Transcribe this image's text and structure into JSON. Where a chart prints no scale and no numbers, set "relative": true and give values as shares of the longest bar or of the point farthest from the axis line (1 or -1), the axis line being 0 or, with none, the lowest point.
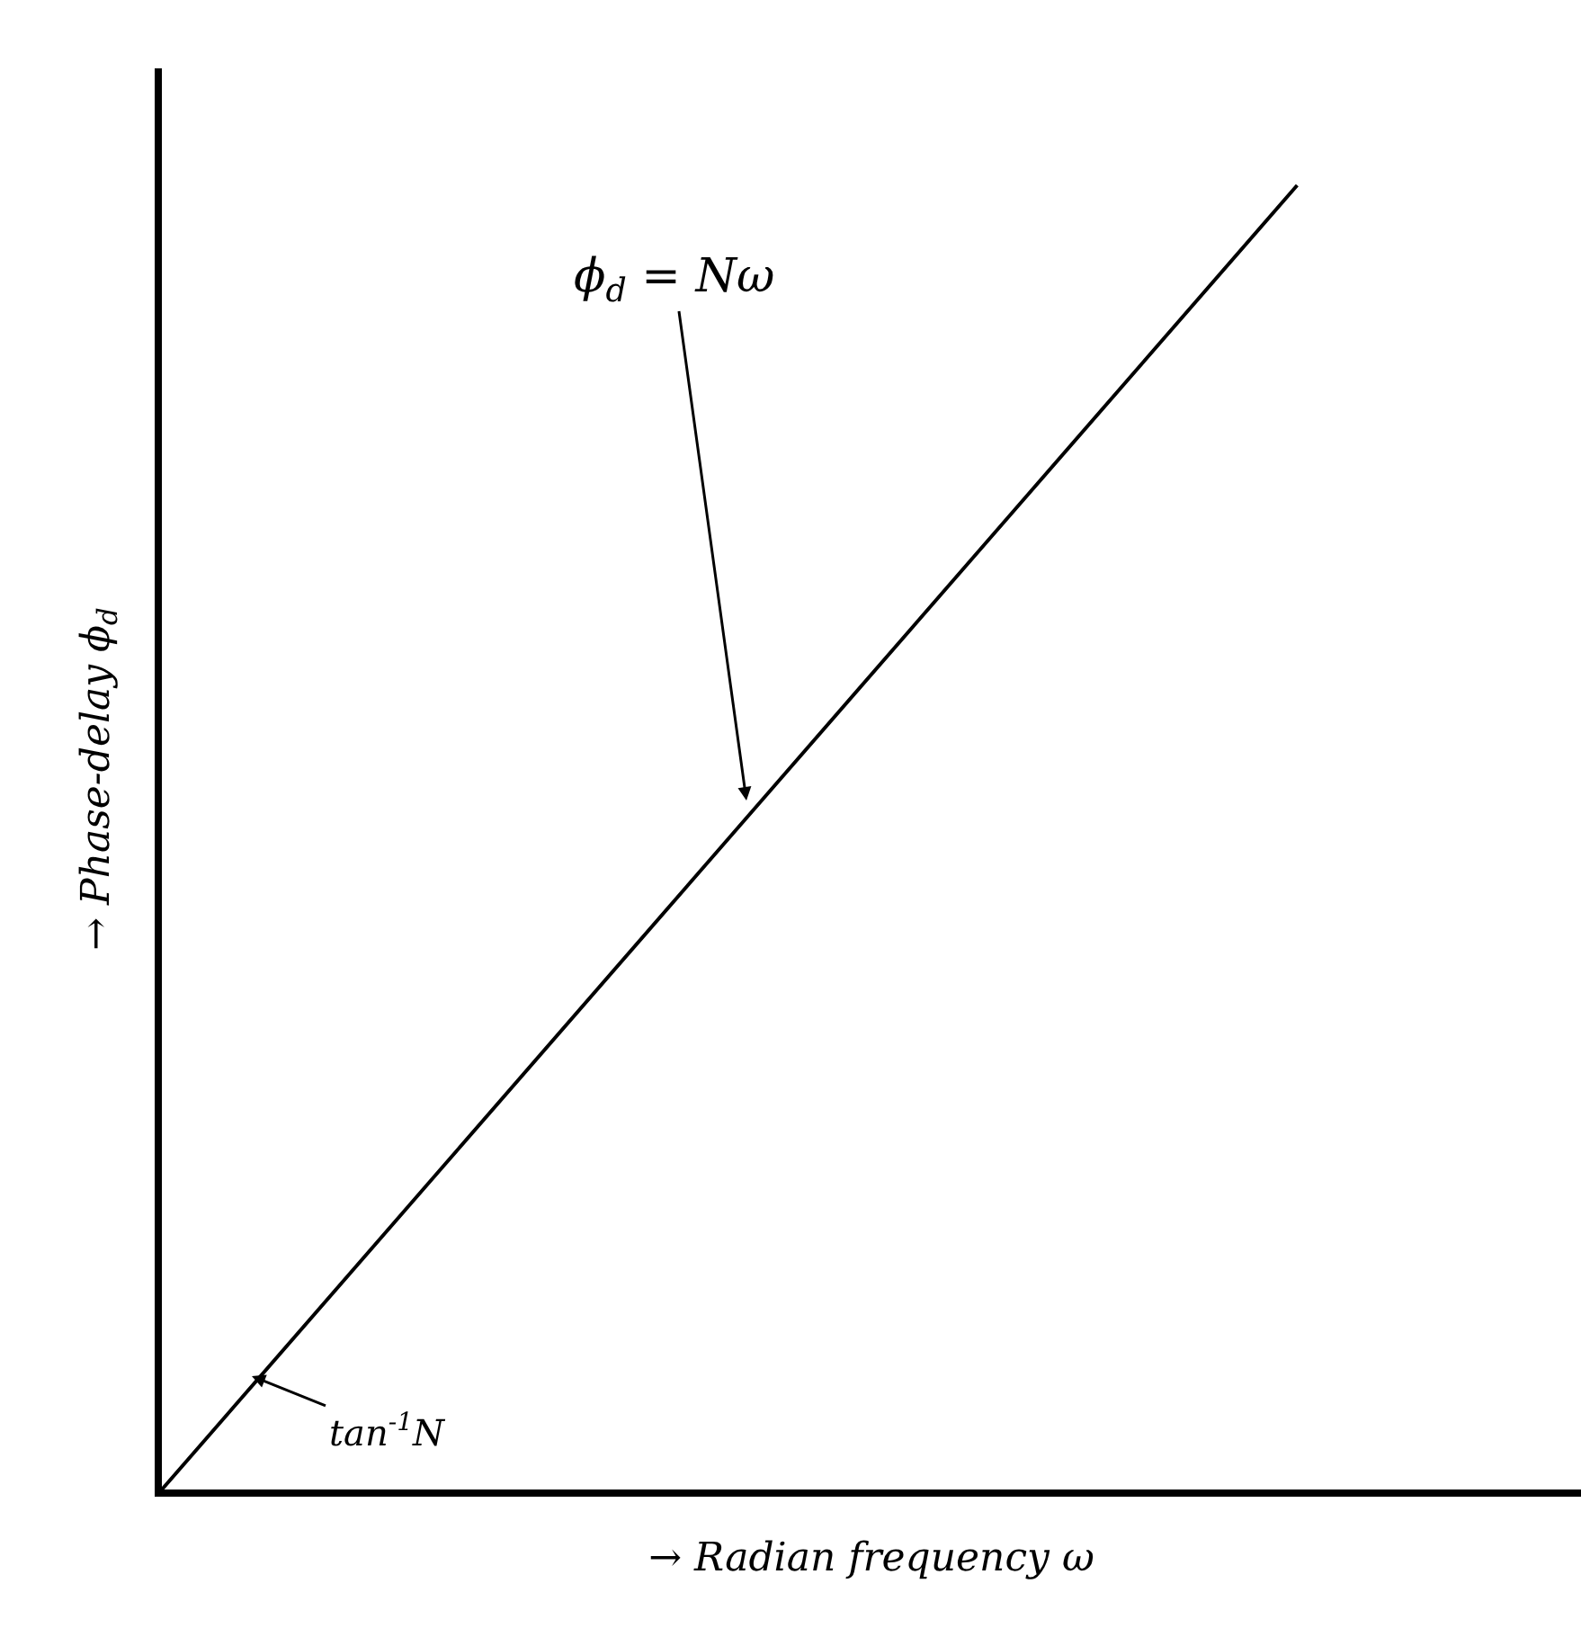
{
  "chart_data": {
    "type": "line",
    "relative": true,
    "xlabel": "→ Radian frequency ω",
    "ylabel": "→ Phase-delay ϕ$_{d}$",
    "categories": [
      null,
      null,
      null,
      null,
      null,
      null
    ],
    "series": [
      {
        "color": "#000000",
        "values": [
          0,
          0.25,
          0.5,
          0.75,
          1,
          null
        ]
      }
    ],
    "annotations": [
      "ϕ$_{d}$ = Nω",
      "tan$^{-1}$N"
    ],
    "marker": "none",
    "line_style": "solid"
  }
}
